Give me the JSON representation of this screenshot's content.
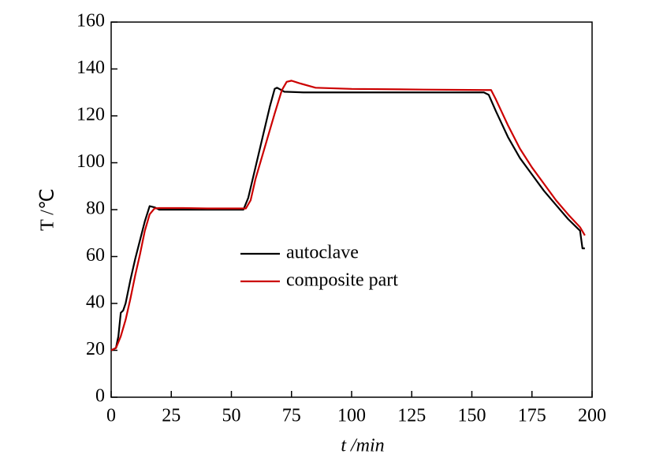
{
  "chart_data": {
    "type": "line",
    "x_label": "t /min",
    "y_label": "T /℃",
    "xlim": [
      0,
      200
    ],
    "xticks": [
      0,
      25,
      50,
      75,
      100,
      125,
      150,
      175,
      200
    ],
    "ylim": [
      0,
      160
    ],
    "yticks": [
      0,
      20,
      40,
      60,
      80,
      100,
      120,
      140,
      160
    ],
    "series": [
      {
        "name": "autoclave",
        "color": "#000000",
        "x": [
          0,
          2,
          3,
          4,
          5,
          6,
          8,
          10,
          12,
          14,
          16,
          18,
          20,
          25,
          40,
          55,
          57,
          60,
          63,
          66,
          68,
          69,
          72,
          80,
          100,
          130,
          155,
          157,
          160,
          165,
          170,
          175,
          180,
          185,
          190,
          194,
          195,
          196,
          197
        ],
        "values": [
          20,
          21,
          26,
          36,
          37,
          40,
          50,
          59,
          67,
          75,
          81.5,
          81,
          80,
          80,
          80,
          80,
          85,
          98,
          111,
          124,
          131.5,
          132,
          130.3,
          130,
          130,
          130,
          130,
          129,
          122,
          111,
          102,
          95,
          88,
          82,
          76,
          72,
          71,
          63.5,
          63.5
        ]
      },
      {
        "name": "composite part",
        "color": "#cc0000",
        "x": [
          0,
          2,
          4,
          6,
          8,
          10,
          12,
          14,
          16,
          18,
          20,
          30,
          40,
          56,
          58,
          60,
          64,
          68,
          71,
          73,
          75,
          78,
          85,
          100,
          130,
          155,
          158,
          160,
          165,
          170,
          175,
          180,
          185,
          190,
          195,
          197
        ],
        "values": [
          20,
          21,
          26,
          33,
          42,
          52,
          61,
          71,
          78,
          80.5,
          80.7,
          80.7,
          80.5,
          80.5,
          84,
          93,
          107,
          121,
          131,
          134.5,
          135,
          134,
          132,
          131.5,
          131.2,
          131,
          131,
          127,
          116,
          106,
          98,
          91,
          84,
          78,
          72.5,
          69
        ]
      }
    ]
  }
}
